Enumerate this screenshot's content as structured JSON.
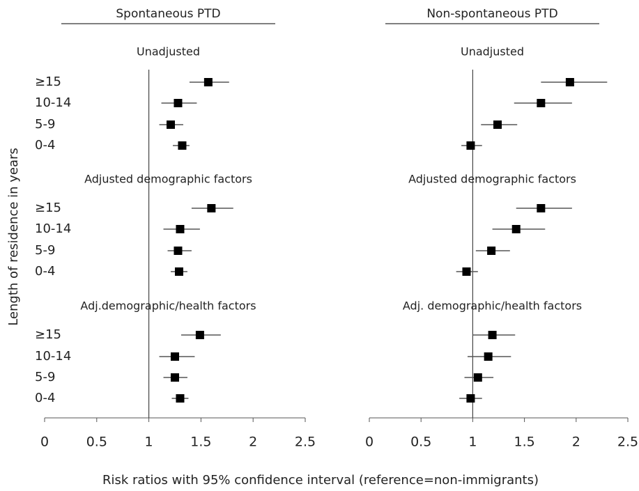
{
  "chart_data": {
    "type": "forest",
    "ylabel": "Length of residence in years",
    "xlabel": "Risk ratios with 95% confidence interval (reference=non-immigrants)",
    "reference": 1,
    "panels": [
      {
        "title": "Spontaneous PTD",
        "xlim": [
          0,
          2.5
        ],
        "xticks": [
          0,
          0.5,
          1,
          1.5,
          2,
          2.5
        ],
        "groups": [
          {
            "title": "Unadjusted",
            "categories": [
              "≥15",
              "10-14",
              "5-9",
              "0-4"
            ],
            "values": [
              1.57,
              1.28,
              1.21,
              1.32
            ],
            "lower": [
              1.39,
              1.12,
              1.1,
              1.23
            ],
            "upper": [
              1.77,
              1.46,
              1.33,
              1.39
            ]
          },
          {
            "title": "Adjusted demographic factors",
            "categories": [
              "≥15",
              "10-14",
              "5-9",
              "0-4"
            ],
            "values": [
              1.6,
              1.3,
              1.28,
              1.29
            ],
            "lower": [
              1.41,
              1.14,
              1.18,
              1.21
            ],
            "upper": [
              1.81,
              1.49,
              1.41,
              1.37
            ]
          },
          {
            "title": "Adj.demographic/health factors",
            "categories": [
              "≥15",
              "10-14",
              "5-9",
              "0-4"
            ],
            "values": [
              1.49,
              1.25,
              1.25,
              1.3
            ],
            "lower": [
              1.31,
              1.1,
              1.14,
              1.22
            ],
            "upper": [
              1.69,
              1.44,
              1.37,
              1.38
            ]
          }
        ]
      },
      {
        "title": "Non-spontaneous PTD",
        "xlim": [
          0,
          2.5
        ],
        "xticks": [
          0,
          0.5,
          1,
          1.5,
          2,
          2.5
        ],
        "groups": [
          {
            "title": "Unadjusted",
            "values": [
              1.94,
              1.66,
              1.24,
              0.98
            ],
            "lower": [
              1.66,
              1.4,
              1.08,
              0.89
            ],
            "upper": [
              2.3,
              1.96,
              1.43,
              1.09
            ]
          },
          {
            "title": "Adjusted demographic factors",
            "values": [
              1.66,
              1.42,
              1.18,
              0.94
            ],
            "lower": [
              1.42,
              1.19,
              1.03,
              0.84
            ],
            "upper": [
              1.96,
              1.7,
              1.36,
              1.05
            ]
          },
          {
            "title": "Adj. demographic/health factors",
            "values": [
              1.19,
              1.15,
              1.05,
              0.98
            ],
            "lower": [
              1.0,
              0.95,
              0.92,
              0.87
            ],
            "upper": [
              1.41,
              1.37,
              1.2,
              1.09
            ]
          }
        ]
      }
    ]
  }
}
